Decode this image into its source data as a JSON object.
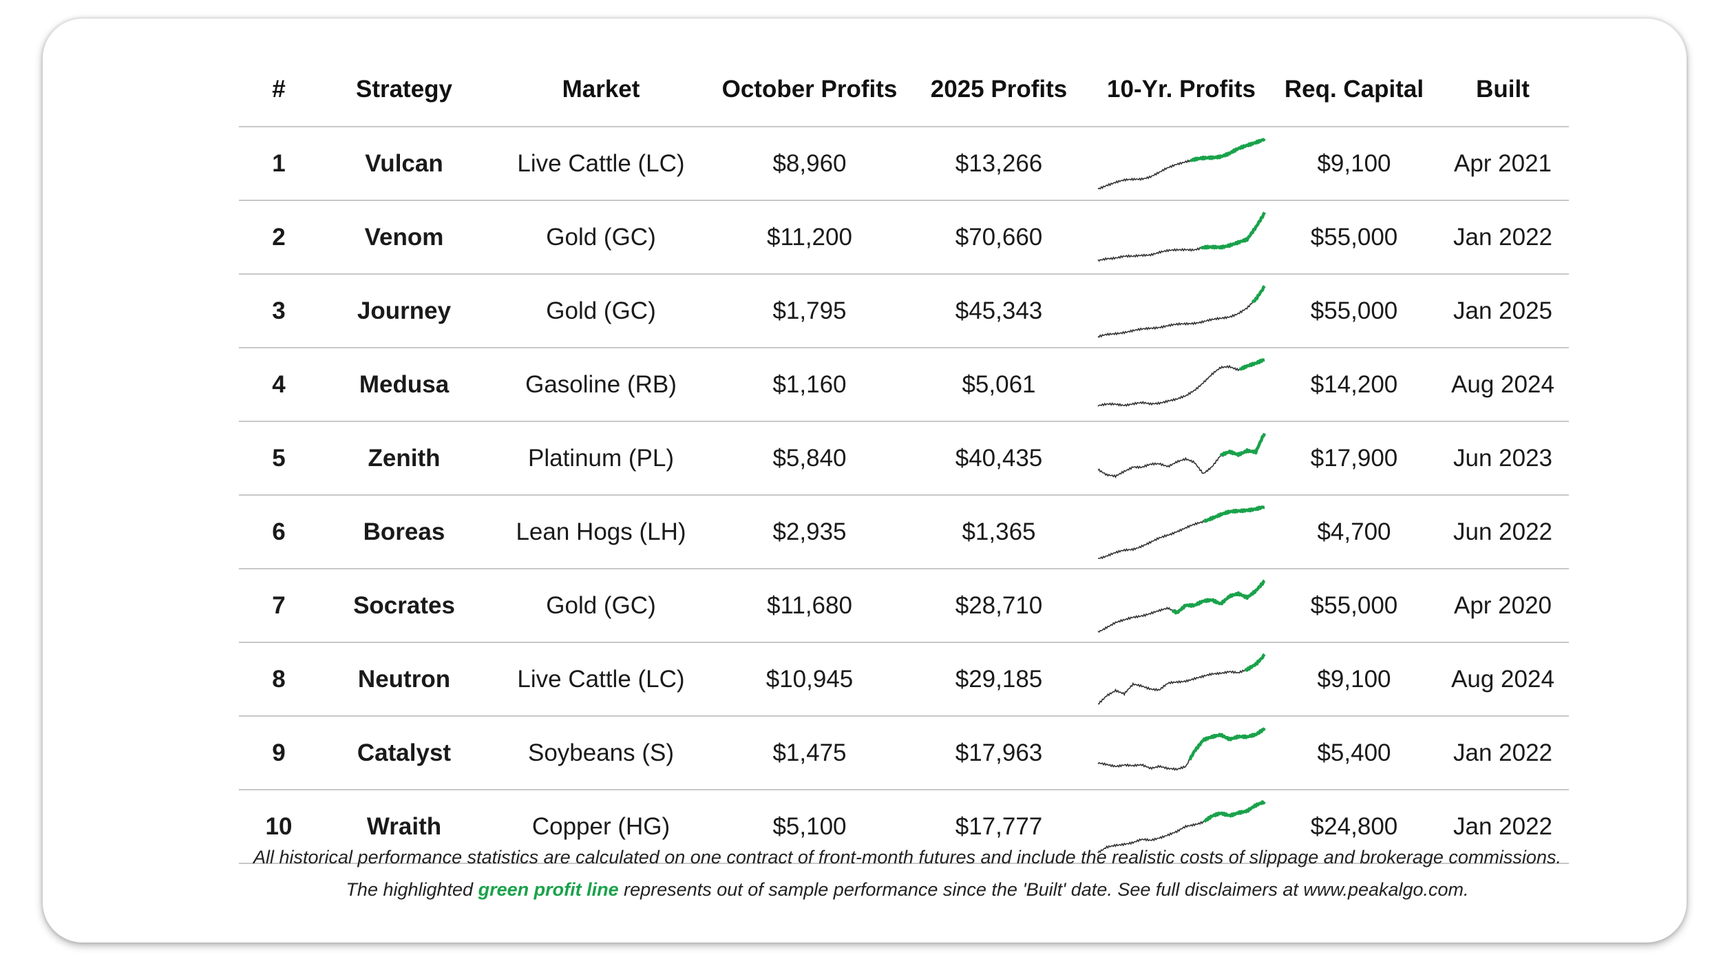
{
  "colors": {
    "profit_green": "#1aa24b",
    "history_line": "#333333",
    "divider": "#c8c8c8"
  },
  "table": {
    "headers": {
      "rank": "#",
      "strategy": "Strategy",
      "market": "Market",
      "october": "October Profits",
      "ytd": "2025 Profits",
      "tenyr": "10-Yr. Profits",
      "capital": "Req. Capital",
      "built": "Built"
    },
    "rows": [
      {
        "rank": "1",
        "strategy": "Vulcan",
        "market": "Live Cattle (LC)",
        "october": "$8,960",
        "ytd": "$13,266",
        "capital": "$9,100",
        "built": "Apr 2021"
      },
      {
        "rank": "2",
        "strategy": "Venom",
        "market": "Gold (GC)",
        "october": "$11,200",
        "ytd": "$70,660",
        "capital": "$55,000",
        "built": "Jan 2022"
      },
      {
        "rank": "3",
        "strategy": "Journey",
        "market": "Gold (GC)",
        "october": "$1,795",
        "ytd": "$45,343",
        "capital": "$55,000",
        "built": "Jan 2025"
      },
      {
        "rank": "4",
        "strategy": "Medusa",
        "market": "Gasoline (RB)",
        "october": "$1,160",
        "ytd": "$5,061",
        "capital": "$14,200",
        "built": "Aug 2024"
      },
      {
        "rank": "5",
        "strategy": "Zenith",
        "market": "Platinum (PL)",
        "october": "$5,840",
        "ytd": "$40,435",
        "capital": "$17,900",
        "built": "Jun 2023"
      },
      {
        "rank": "6",
        "strategy": "Boreas",
        "market": "Lean Hogs (LH)",
        "october": "$2,935",
        "ytd": "$1,365",
        "capital": "$4,700",
        "built": "Jun 2022"
      },
      {
        "rank": "7",
        "strategy": "Socrates",
        "market": "Gold (GC)",
        "october": "$11,680",
        "ytd": "$28,710",
        "capital": "$55,000",
        "built": "Apr 2020"
      },
      {
        "rank": "8",
        "strategy": "Neutron",
        "market": "Live Cattle (LC)",
        "october": "$10,945",
        "ytd": "$29,185",
        "capital": "$9,100",
        "built": "Aug 2024"
      },
      {
        "rank": "9",
        "strategy": "Catalyst",
        "market": "Soybeans (S)",
        "october": "$1,475",
        "ytd": "$17,963",
        "capital": "$5,400",
        "built": "Jan 2022"
      },
      {
        "rank": "10",
        "strategy": "Wraith",
        "market": "Copper (HG)",
        "october": "$5,100",
        "ytd": "$17,777",
        "capital": "$24,800",
        "built": "Jan 2022"
      }
    ]
  },
  "sparklines": [
    {
      "split": 0.55,
      "points": [
        0.02,
        0.1,
        0.15,
        0.18,
        0.2,
        0.22,
        0.26,
        0.33,
        0.42,
        0.5,
        0.55,
        0.58,
        0.6,
        0.62,
        0.65,
        0.7,
        0.78,
        0.85,
        0.92,
        0.98
      ]
    },
    {
      "split": 0.62,
      "points": [
        0.05,
        0.1,
        0.12,
        0.14,
        0.13,
        0.16,
        0.18,
        0.22,
        0.24,
        0.26,
        0.28,
        0.27,
        0.3,
        0.31,
        0.32,
        0.36,
        0.4,
        0.45,
        0.7,
        0.98
      ]
    },
    {
      "split": 0.93,
      "points": [
        0.0,
        0.05,
        0.08,
        0.1,
        0.12,
        0.15,
        0.18,
        0.2,
        0.22,
        0.24,
        0.26,
        0.28,
        0.3,
        0.33,
        0.36,
        0.4,
        0.46,
        0.55,
        0.72,
        0.98
      ]
    },
    {
      "split": 0.85,
      "points": [
        0.1,
        0.12,
        0.13,
        0.12,
        0.14,
        0.15,
        0.13,
        0.16,
        0.2,
        0.22,
        0.28,
        0.4,
        0.55,
        0.7,
        0.82,
        0.85,
        0.8,
        0.86,
        0.9,
        0.98
      ]
    },
    {
      "split": 0.74,
      "points": [
        0.3,
        0.18,
        0.15,
        0.26,
        0.35,
        0.33,
        0.38,
        0.4,
        0.36,
        0.44,
        0.48,
        0.42,
        0.22,
        0.35,
        0.55,
        0.62,
        0.58,
        0.66,
        0.62,
        0.98
      ]
    },
    {
      "split": 0.64,
      "points": [
        0.0,
        0.05,
        0.1,
        0.15,
        0.18,
        0.24,
        0.3,
        0.38,
        0.45,
        0.52,
        0.58,
        0.64,
        0.7,
        0.78,
        0.84,
        0.88,
        0.9,
        0.93,
        0.95,
        0.98
      ]
    },
    {
      "split": 0.45,
      "points": [
        0.0,
        0.1,
        0.18,
        0.22,
        0.28,
        0.32,
        0.36,
        0.4,
        0.45,
        0.38,
        0.52,
        0.5,
        0.58,
        0.62,
        0.55,
        0.68,
        0.72,
        0.66,
        0.8,
        0.98
      ]
    },
    {
      "split": 0.88,
      "points": [
        0.02,
        0.2,
        0.3,
        0.22,
        0.4,
        0.38,
        0.33,
        0.3,
        0.42,
        0.45,
        0.48,
        0.52,
        0.55,
        0.6,
        0.63,
        0.66,
        0.62,
        0.68,
        0.8,
        0.98
      ]
    },
    {
      "split": 0.55,
      "points": [
        0.3,
        0.28,
        0.26,
        0.28,
        0.25,
        0.27,
        0.22,
        0.26,
        0.2,
        0.18,
        0.25,
        0.55,
        0.75,
        0.8,
        0.85,
        0.78,
        0.82,
        0.8,
        0.85,
        0.98
      ]
    },
    {
      "split": 0.64,
      "points": [
        0.0,
        0.1,
        0.15,
        0.18,
        0.2,
        0.25,
        0.24,
        0.3,
        0.35,
        0.4,
        0.5,
        0.55,
        0.6,
        0.7,
        0.75,
        0.72,
        0.78,
        0.8,
        0.9,
        0.98
      ]
    }
  ],
  "footer": {
    "line1": "All historical performance statistics are calculated on one contract of front-month futures and include the realistic costs of slippage and brokerage commissions.",
    "line2_before": "The highlighted",
    "line2_highlight": "green profit line",
    "line2_after": "represents out of sample performance since the 'Built' date. See full disclaimers at www.peakalgo.com."
  }
}
